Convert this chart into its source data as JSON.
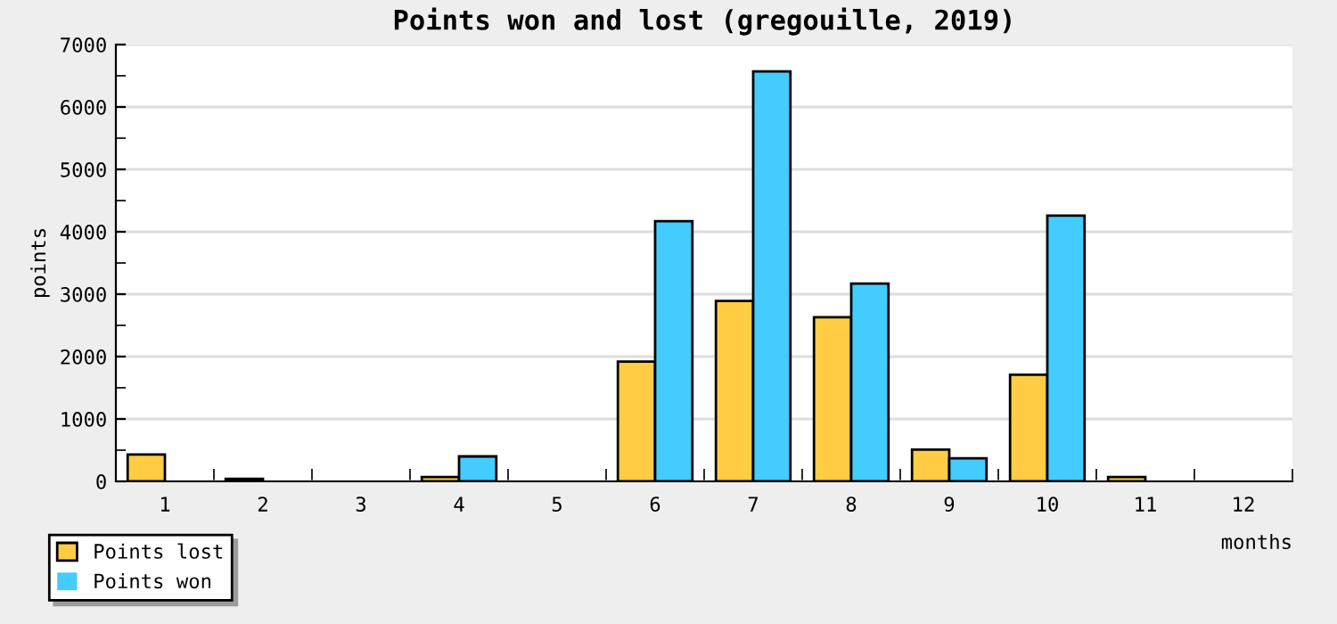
{
  "chart_data": {
    "type": "bar",
    "title": "Points won and lost (gregouille, 2019)",
    "xlabel": "months",
    "ylabel": "points",
    "categories": [
      "1",
      "2",
      "3",
      "4",
      "5",
      "6",
      "7",
      "8",
      "9",
      "10",
      "11",
      "12"
    ],
    "series": [
      {
        "name": "Points lost",
        "color": "#ffcc44",
        "values": [
          430,
          40,
          0,
          70,
          0,
          1920,
          2890,
          2630,
          510,
          1710,
          70,
          0
        ]
      },
      {
        "name": "Points won",
        "color": "#44ccff",
        "values": [
          0,
          0,
          0,
          400,
          0,
          4170,
          6570,
          3170,
          370,
          4260,
          0,
          0
        ]
      }
    ],
    "ylim": [
      0,
      7000
    ],
    "yticks": [
      0,
      1000,
      2000,
      3000,
      4000,
      5000,
      6000,
      7000
    ],
    "grid": "y",
    "legend": "bottom left"
  }
}
